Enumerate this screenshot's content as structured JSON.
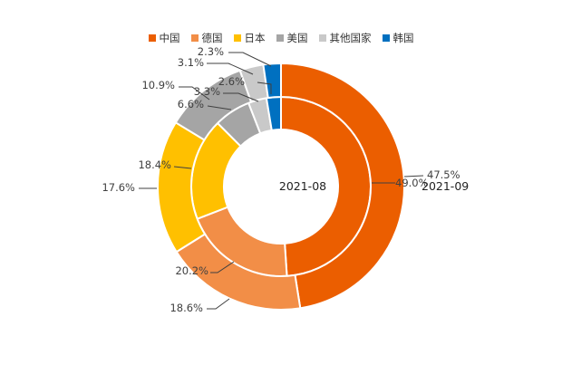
{
  "chart_data": {
    "type": "donut",
    "categories": [
      "中国",
      "德国",
      "日本",
      "美国",
      "其他国家",
      "韩国"
    ],
    "colors": [
      "#EB5E00",
      "#F28E47",
      "#FFC000",
      "#A5A5A5",
      "#C9C9C9",
      "#0070C0"
    ],
    "series": [
      {
        "name": "2021-08",
        "ring": "inner",
        "values": [
          49.0,
          20.2,
          18.4,
          6.6,
          3.3,
          2.6
        ],
        "labels": [
          "49.0%",
          "20.2%",
          "18.4%",
          "6.6%",
          "3.3%",
          "2.6%"
        ]
      },
      {
        "name": "2021-09",
        "ring": "outer",
        "values": [
          47.5,
          18.6,
          17.6,
          10.9,
          3.1,
          2.3
        ],
        "labels": [
          "47.5%",
          "18.6%",
          "17.6%",
          "10.9%",
          "3.1%",
          "2.3%"
        ]
      }
    ],
    "legend_position": "top"
  }
}
